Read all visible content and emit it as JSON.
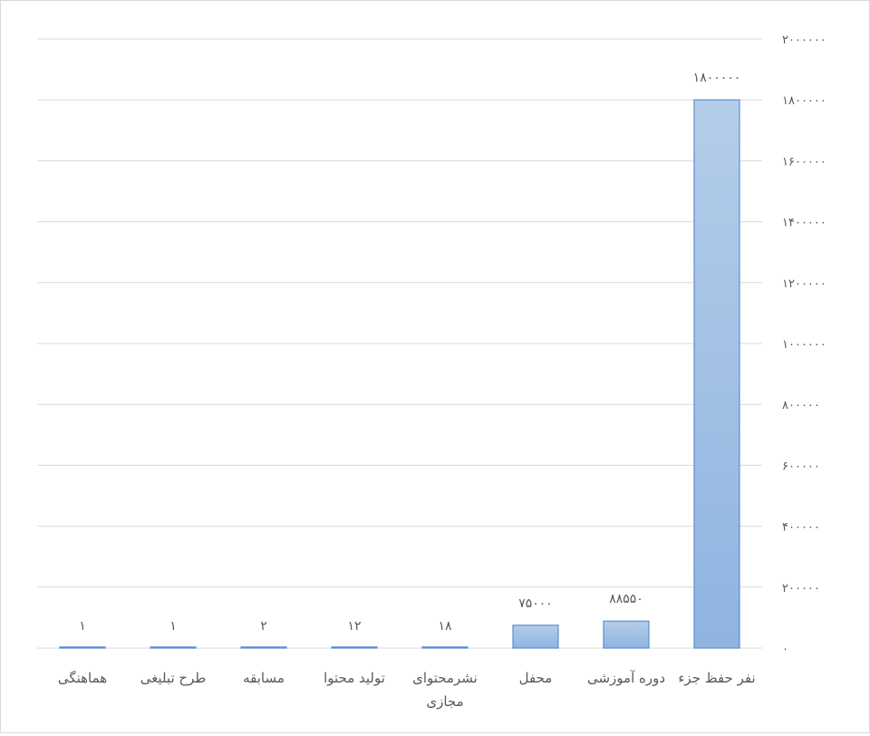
{
  "chart_data": {
    "type": "bar",
    "direction": "rtl",
    "categories": [
      [
        "نفر حفظ جزء"
      ],
      [
        "دوره آموزشی"
      ],
      [
        "محفل"
      ],
      [
        "نشرمحتوای",
        "مجازی"
      ],
      [
        "تولید محتوا"
      ],
      [
        "مسابقه"
      ],
      [
        "طرح تبلیغی"
      ],
      [
        "هماهنگی"
      ]
    ],
    "values": [
      1800000,
      88550,
      75000,
      18,
      12,
      2,
      1,
      1
    ],
    "data_labels": [
      "۱۸۰۰۰۰۰",
      "۸۸۵۵۰",
      "۷۵۰۰۰",
      "۱۸",
      "۱۲",
      "۲",
      "۱",
      "۱"
    ],
    "ylim": [
      0,
      2000000
    ],
    "yticks": [
      0,
      200000,
      400000,
      600000,
      800000,
      1000000,
      1200000,
      1400000,
      1600000,
      1800000,
      2000000
    ],
    "ytick_labels": [
      "۰",
      "۲۰۰۰۰۰",
      "۴۰۰۰۰۰",
      "۶۰۰۰۰۰",
      "۸۰۰۰۰۰",
      "۱۰۰۰۰۰۰",
      "۱۲۰۰۰۰۰",
      "۱۴۰۰۰۰۰",
      "۱۶۰۰۰۰۰",
      "۱۸۰۰۰۰۰",
      "۲۰۰۰۰۰۰"
    ],
    "yaxis_side": "right",
    "grid": true,
    "title": "",
    "xlabel": "",
    "ylabel": "",
    "colors": {
      "bar_fill_top": "#b4cde9",
      "bar_fill_bottom": "#8fb4e0",
      "bar_stroke": "#5b8fd1",
      "grid": "#d9d9d9",
      "text": "#595959"
    }
  }
}
